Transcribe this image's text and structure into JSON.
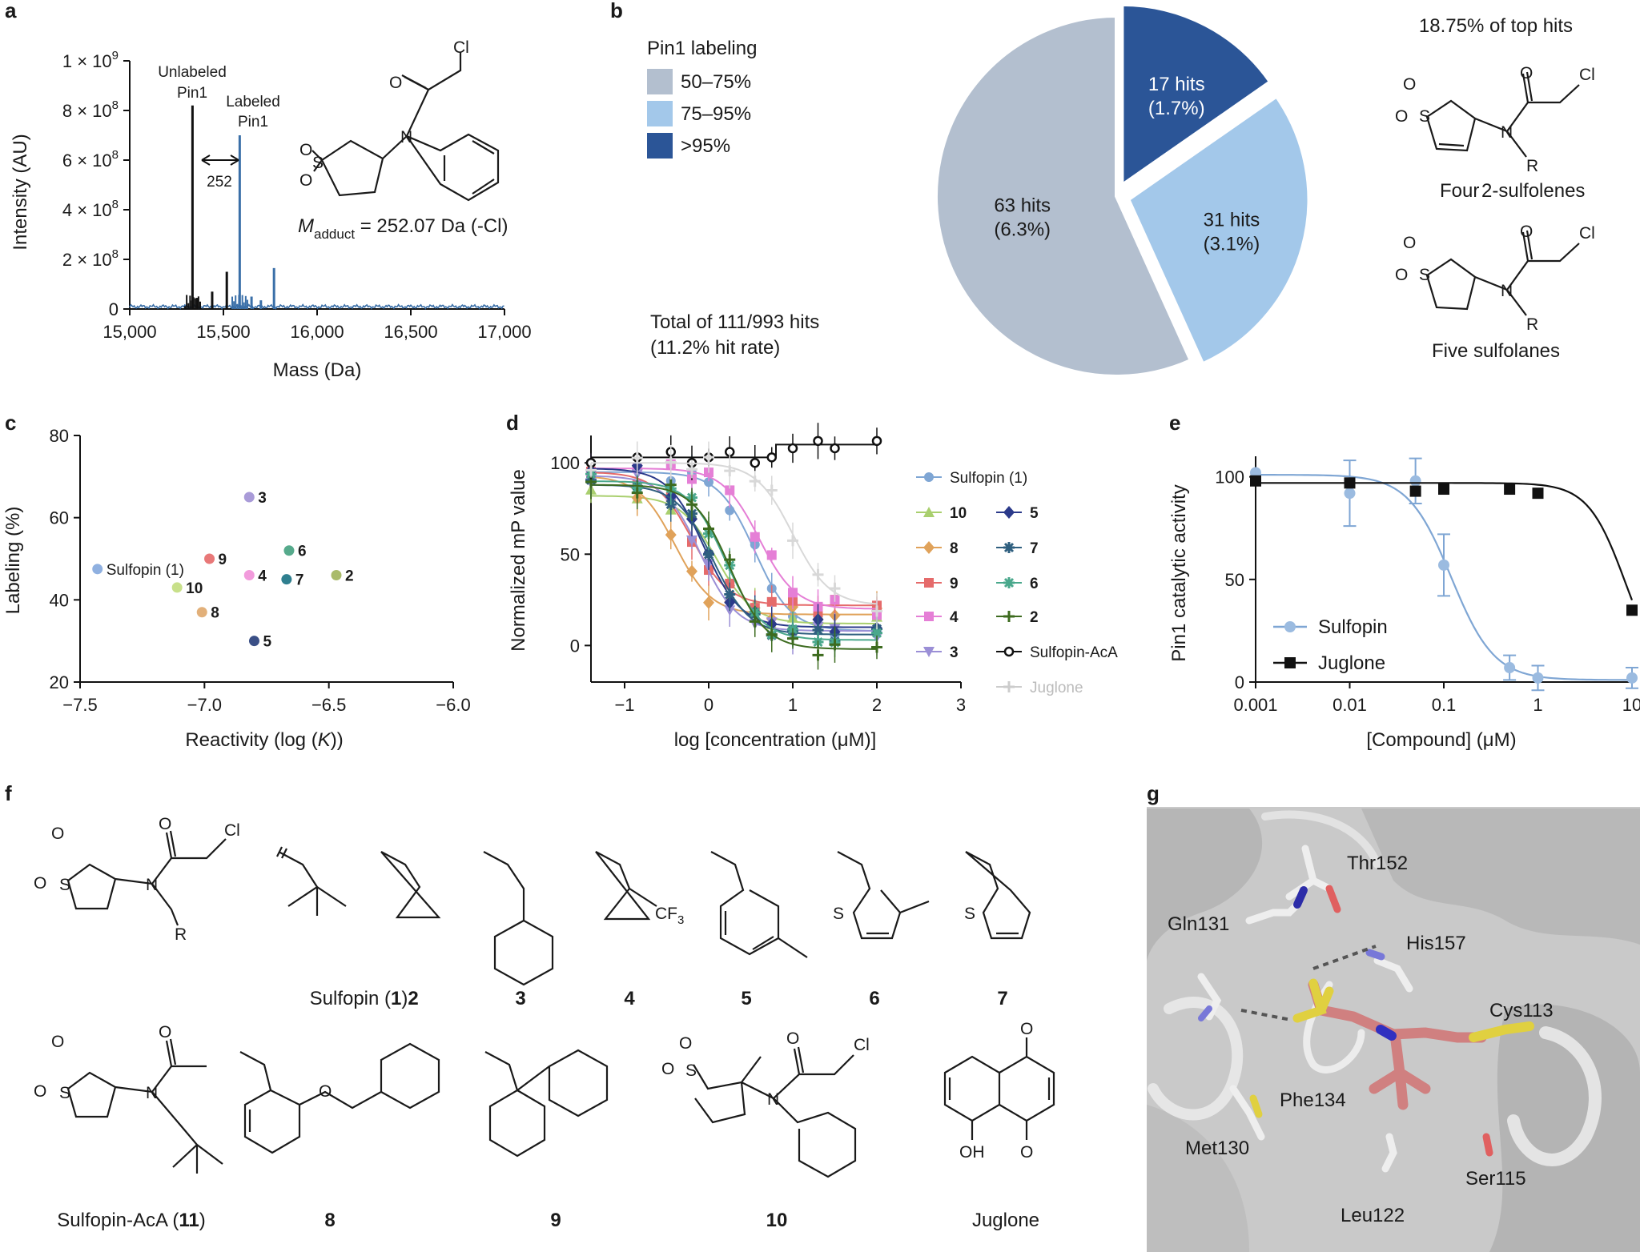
{
  "panels": [
    "a",
    "b",
    "c",
    "d",
    "e",
    "f",
    "g"
  ],
  "colors": {
    "blue": "#3a6fa8",
    "black": "#111111",
    "pie_50_75": "#b3bfcf",
    "pie_75_95": "#a3c8ea",
    "pie_gt95": "#2b5597",
    "sulfopin_curve": "#6f9bcb",
    "juglone_light": "#d8d8d8"
  },
  "panel_a": {
    "ylabel": "Intensity (AU)",
    "xlabel": "Mass (Da)",
    "yticks": [
      "0",
      "2 × 10",
      "4 × 10",
      "6 × 10",
      "8 × 10",
      "1 × 10"
    ],
    "ytick_exp": "8",
    "ytick_exp_top": "9",
    "xticks": [
      "15,000",
      "15,500",
      "16,000",
      "16,500",
      "17,000"
    ],
    "unlabeled_line1": "Unlabeled",
    "unlabeled_line2": "Pin1",
    "labeled_line1": "Labeled",
    "labeled_line2": "Pin1",
    "delta": "252",
    "madduct_M": "M",
    "madduct_sub": "adduct",
    "madduct_rest": " = 252.07 Da (-Cl)",
    "atoms": {
      "Cl": "Cl",
      "O": "O",
      "N": "N",
      "S": "S"
    }
  },
  "panel_b": {
    "legend_title": "Pin1 labeling",
    "legend": [
      "50–75%",
      "75–95%",
      ">95%"
    ],
    "total_line1": "Total of 111/993 hits",
    "total_line2": "(11.2% hit rate)",
    "slice_labels": [
      {
        "line1": "17 hits",
        "line2": "(1.7%)"
      },
      {
        "line1": "31 hits",
        "line2": "(3.1%)"
      },
      {
        "line1": "63 hits",
        "line2": "(6.3%)"
      }
    ],
    "top_hits": "18.75% of top hits",
    "caption_sulfolenes_a": "Four",
    "caption_sulfolenes_b": "2-sulfolenes",
    "caption_sulfolanes": "Five sulfolanes",
    "atoms": {
      "O": "O",
      "S": "S",
      "N": "N",
      "R": "R",
      "Cl": "Cl"
    }
  },
  "panel_c": {
    "ylabel": "Labeling (%)",
    "xlabel_pre": "Reactivity (log (",
    "xlabel_K": "K",
    "xlabel_post": "))",
    "yticks": [
      "20",
      "40",
      "60",
      "80"
    ],
    "xticks": [
      "−7.5",
      "−7.0",
      "−6.5",
      "−6.0"
    ]
  },
  "panel_d": {
    "ylabel": "Normalized mP value",
    "xlabel": "log [concentration (μM)]",
    "yticks": [
      "0",
      "50",
      "100"
    ],
    "xticks": [
      "−1",
      "0",
      "1",
      "2",
      "3"
    ],
    "legend": [
      {
        "name": "Sulfopin (1)",
        "color": "#7fa6d4",
        "marker": "circle"
      },
      {
        "name": "10",
        "color": "#a9cf6e",
        "marker": "triangle"
      },
      {
        "name": "5",
        "color": "#2b3a8a",
        "marker": "diamond"
      },
      {
        "name": "8",
        "color": "#e0a25a",
        "marker": "diamond"
      },
      {
        "name": "7",
        "color": "#2f5f7f",
        "marker": "star"
      },
      {
        "name": "9",
        "color": "#e56b6b",
        "marker": "square"
      },
      {
        "name": "6",
        "color": "#4aa88c",
        "marker": "star"
      },
      {
        "name": "4",
        "color": "#e57fd6",
        "marker": "square"
      },
      {
        "name": "2",
        "color": "#3d6b1f",
        "marker": "plus"
      },
      {
        "name": "3",
        "color": "#9b8fd6",
        "marker": "triangle-down"
      },
      {
        "name": "Sulfopin-AcA",
        "color": "#111111",
        "marker": "circle-open"
      },
      {
        "name": "Juglone",
        "color": "#cccccc",
        "marker": "plus"
      }
    ]
  },
  "panel_e": {
    "ylabel": "Pin1 catalytic activity",
    "xlabel": "[Compound] (μM)",
    "yticks": [
      "0",
      "50",
      "100"
    ],
    "xticks": [
      "0.001",
      "0.01",
      "0.1",
      "1",
      "10"
    ],
    "legend": [
      "Sulfopin",
      "Juglone"
    ]
  },
  "panel_f": {
    "atoms": {
      "O": "O",
      "S": "S",
      "N": "N",
      "R": "R",
      "Cl": "Cl",
      "OH": "OH",
      "CF": "CF",
      "CF_sub": "3"
    },
    "labels_row1": [
      "Sulfopin (",
      "1",
      ")",
      "2",
      "3",
      "4",
      "5",
      "6",
      "7"
    ],
    "labels_row2": [
      "Sulfopin-AcA (",
      "11",
      ")",
      "8",
      "9",
      "10",
      "Juglone"
    ]
  },
  "panel_g": {
    "residues": [
      "Thr152",
      "Gln131",
      "His157",
      "Cys113",
      "Phe134",
      "Met130",
      "Ser115",
      "Leu122"
    ]
  },
  "chart_data": [
    {
      "type": "line",
      "panel": "a",
      "title": "",
      "xlabel": "Mass (Da)",
      "ylabel": "Intensity (AU)",
      "xlim": [
        15000,
        17000
      ],
      "ylim": [
        0,
        1000000000
      ],
      "series": [
        {
          "name": "Unlabeled Pin1",
          "peaks": [
            {
              "x": 15335,
              "y": 820000000
            },
            {
              "x": 15518,
              "y": 150000000
            },
            {
              "x": 15440,
              "y": 70000000
            },
            {
              "x": 15360,
              "y": 45000000
            }
          ]
        },
        {
          "name": "Labeled Pin1",
          "peaks": [
            {
              "x": 15587,
              "y": 700000000
            },
            {
              "x": 15770,
              "y": 165000000
            },
            {
              "x": 15650,
              "y": 50000000
            },
            {
              "x": 15700,
              "y": 35000000
            }
          ]
        }
      ]
    },
    {
      "type": "pie",
      "panel": "b",
      "title": "Pin1 labeling",
      "categories": [
        ">95%",
        "75–95%",
        "50–75%"
      ],
      "values": [
        17,
        31,
        63
      ],
      "percent": [
        1.7,
        3.1,
        6.3
      ]
    },
    {
      "type": "scatter",
      "panel": "c",
      "xlabel": "Reactivity (log (K))",
      "ylabel": "Labeling (%)",
      "xlim": [
        -7.5,
        -6.0
      ],
      "ylim": [
        20,
        80
      ],
      "points": [
        {
          "label": "Sulfopin (1)",
          "x": -7.43,
          "y": 47.5,
          "color": "#8fb0e0"
        },
        {
          "label": "10",
          "x": -7.11,
          "y": 43,
          "color": "#c8e08a"
        },
        {
          "label": "9",
          "x": -6.98,
          "y": 50,
          "color": "#e87878"
        },
        {
          "label": "8",
          "x": -7.01,
          "y": 37,
          "color": "#e2b07a"
        },
        {
          "label": "4",
          "x": -6.82,
          "y": 46,
          "color": "#f29bdc"
        },
        {
          "label": "3",
          "x": -6.82,
          "y": 65,
          "color": "#a99bd8"
        },
        {
          "label": "5",
          "x": -6.8,
          "y": 30,
          "color": "#3a4f86"
        },
        {
          "label": "6",
          "x": -6.66,
          "y": 52,
          "color": "#56aa8c"
        },
        {
          "label": "7",
          "x": -6.67,
          "y": 45,
          "color": "#2f7f8f"
        },
        {
          "label": "2",
          "x": -6.47,
          "y": 46,
          "color": "#a9bb6a"
        }
      ]
    },
    {
      "type": "line",
      "panel": "d",
      "xlabel": "log [concentration (μM)]",
      "ylabel": "Normalized mP value",
      "xlim": [
        -1.4,
        3
      ],
      "ylim": [
        -20,
        115
      ],
      "x": [
        -1.4,
        -0.85,
        -0.45,
        -0.2,
        0,
        0.25,
        0.55,
        0.75,
        1,
        1.3,
        1.5,
        2
      ],
      "series": [
        {
          "name": "Sulfopin (1)",
          "ic50_log": 0.55,
          "top": 95,
          "bottom": 8,
          "color": "#7fa6d4"
        },
        {
          "name": "10",
          "ic50_log": 0.1,
          "top": 82,
          "bottom": 12,
          "color": "#a9cf6e"
        },
        {
          "name": "8",
          "ic50_log": -0.4,
          "top": 93,
          "bottom": 17,
          "color": "#e0a25a"
        },
        {
          "name": "9",
          "ic50_log": -0.2,
          "top": 95,
          "bottom": 22,
          "color": "#e56b6b"
        },
        {
          "name": "4",
          "ic50_log": 0.6,
          "top": 97,
          "bottom": 20,
          "color": "#e57fd6"
        },
        {
          "name": "3",
          "ic50_log": -0.1,
          "top": 93,
          "bottom": 8,
          "color": "#9b8fd6"
        },
        {
          "name": "5",
          "ic50_log": -0.05,
          "top": 97,
          "bottom": 10,
          "color": "#2b3a8a"
        },
        {
          "name": "7",
          "ic50_log": 0.05,
          "top": 88,
          "bottom": 6,
          "color": "#2f5f7f"
        },
        {
          "name": "6",
          "ic50_log": 0.2,
          "top": 90,
          "bottom": 3,
          "color": "#4aa88c"
        },
        {
          "name": "2",
          "ic50_log": 0.25,
          "top": 88,
          "bottom": -2,
          "color": "#3d6b1f"
        },
        {
          "name": "Sulfopin-AcA",
          "step": true,
          "y_low": 103,
          "y_high": 110,
          "color": "#111111"
        },
        {
          "name": "Juglone",
          "ic50_log": 1.0,
          "top": 100,
          "bottom": 22,
          "color": "#d8d8d8"
        }
      ]
    },
    {
      "type": "line",
      "panel": "e",
      "xlabel": "[Compound] (μM)",
      "ylabel": "Pin1 catalytic activity",
      "xscale": "log",
      "xlim": [
        0.001,
        10
      ],
      "ylim": [
        0,
        110
      ],
      "series": [
        {
          "name": "Sulfopin",
          "x": [
            0.001,
            0.01,
            0.05,
            0.1,
            0.5,
            1,
            10
          ],
          "values": [
            102,
            92,
            98,
            57,
            7,
            2,
            2
          ],
          "errors": [
            0,
            16,
            11,
            15,
            6,
            6,
            5
          ],
          "color": "#7fa6d4"
        },
        {
          "name": "Juglone",
          "x": [
            0.001,
            0.01,
            0.05,
            0.1,
            0.5,
            1,
            10
          ],
          "values": [
            98,
            97,
            93,
            94,
            94,
            92,
            35
          ],
          "color": "#111111"
        }
      ]
    }
  ]
}
